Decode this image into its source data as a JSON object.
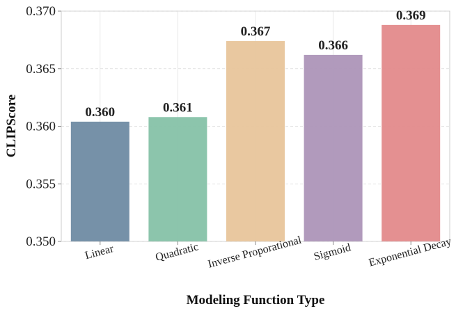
{
  "chart_data": {
    "type": "bar",
    "categories": [
      "Linear",
      "Quadratic",
      "Inverse Proporational",
      "Sigmoid",
      "Exponential Decay"
    ],
    "values": [
      0.3604,
      0.3608,
      0.3674,
      0.3662,
      0.3688
    ],
    "data_labels": [
      "0.360",
      "0.361",
      "0.367",
      "0.366",
      "0.369"
    ],
    "colors": [
      "#6f8ba3",
      "#86c2a8",
      "#e8c59b",
      "#ad95b8",
      "#e38a8b"
    ],
    "xlabel": "Modeling Function Type",
    "ylabel": "CLIPScore",
    "ylim": [
      0.35,
      0.37
    ],
    "yticks": [
      "0.350",
      "0.355",
      "0.360",
      "0.365",
      "0.370"
    ],
    "grid": true
  }
}
